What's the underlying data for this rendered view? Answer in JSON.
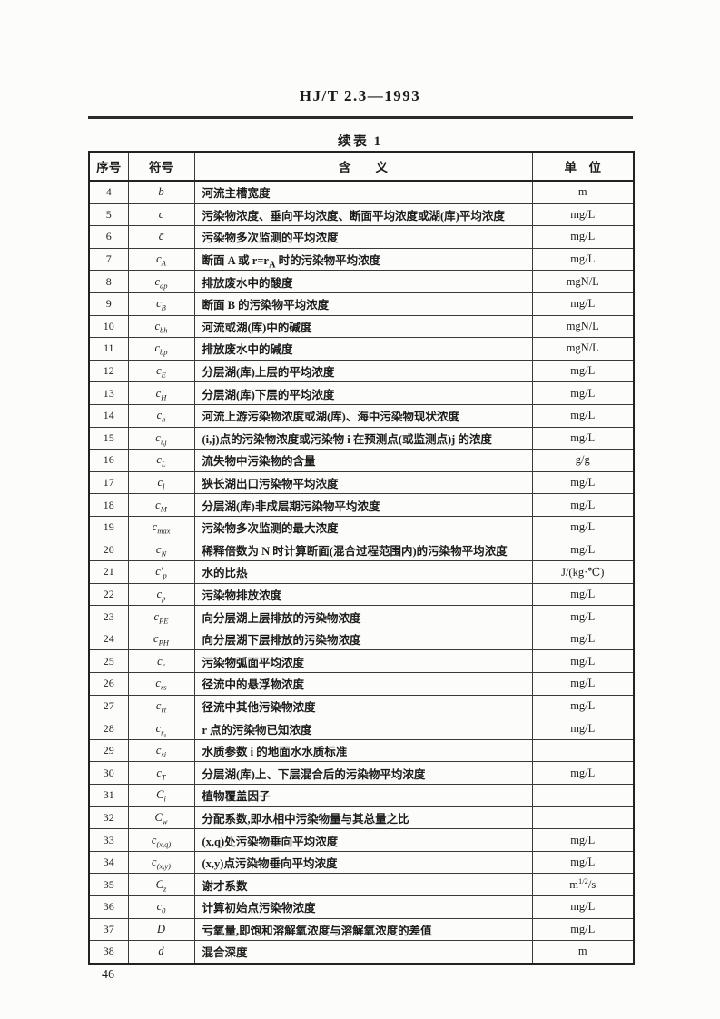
{
  "page": {
    "doc_code": "HJ/T 2.3—1993",
    "table_caption": "续表 1",
    "page_number": "46"
  },
  "table": {
    "headers": {
      "no": "序号",
      "symbol": "符号",
      "meaning": "含　　义",
      "unit": "单　位"
    },
    "rows": [
      {
        "no": "4",
        "symbol": "b",
        "meaning": "河流主槽宽度",
        "unit": "m"
      },
      {
        "no": "5",
        "symbol": "c",
        "meaning": "污染物浓度、垂向平均浓度、断面平均浓度或湖(库)平均浓度",
        "unit": "mg/L"
      },
      {
        "no": "6",
        "symbol": "c̄",
        "meaning": "污染物多次监测的平均浓度",
        "unit": "mg/L"
      },
      {
        "no": "7",
        "symbol": "c_{A}",
        "meaning": "断面 A 或 r=r_{A} 时的污染物平均浓度",
        "unit": "mg/L"
      },
      {
        "no": "8",
        "symbol": "c_{ap}",
        "meaning": "排放废水中的酸度",
        "unit": "mgN/L"
      },
      {
        "no": "9",
        "symbol": "c_{B}",
        "meaning": "断面 B 的污染物平均浓度",
        "unit": "mg/L"
      },
      {
        "no": "10",
        "symbol": "c_{bh}",
        "meaning": "河流或湖(库)中的碱度",
        "unit": "mgN/L"
      },
      {
        "no": "11",
        "symbol": "c_{bp}",
        "meaning": "排放废水中的碱度",
        "unit": "mgN/L"
      },
      {
        "no": "12",
        "symbol": "c_{E}",
        "meaning": "分层湖(库)上层的平均浓度",
        "unit": "mg/L"
      },
      {
        "no": "13",
        "symbol": "c_{H}",
        "meaning": "分层湖(库)下层的平均浓度",
        "unit": "mg/L"
      },
      {
        "no": "14",
        "symbol": "c_{h}",
        "meaning": "河流上游污染物浓度或湖(库)、海中污染物现状浓度",
        "unit": "mg/L"
      },
      {
        "no": "15",
        "symbol": "c_{i,j}",
        "meaning": "(i,j)点的污染物浓度或污染物 i 在预测点(或监测点)j 的浓度",
        "unit": "mg/L"
      },
      {
        "no": "16",
        "symbol": "c_{L}",
        "meaning": "流失物中污染物的含量",
        "unit": "g/g"
      },
      {
        "no": "17",
        "symbol": "c_{l}",
        "meaning": "狭长湖出口污染物平均浓度",
        "unit": "mg/L"
      },
      {
        "no": "18",
        "symbol": "c_{M}",
        "meaning": "分层湖(库)非成层期污染物平均浓度",
        "unit": "mg/L"
      },
      {
        "no": "19",
        "symbol": "c_{max}",
        "meaning": "污染物多次监测的最大浓度",
        "unit": "mg/L"
      },
      {
        "no": "20",
        "symbol": "c_{N}",
        "meaning": "稀释倍数为 N 时计算断面(混合过程范围内)的污染物平均浓度",
        "unit": "mg/L"
      },
      {
        "no": "21",
        "symbol": "c′_{p}",
        "meaning": "水的比热",
        "unit": "J/(kg·℃)"
      },
      {
        "no": "22",
        "symbol": "c_{p}",
        "meaning": "污染物排放浓度",
        "unit": "mg/L"
      },
      {
        "no": "23",
        "symbol": "c_{PE}",
        "meaning": "向分层湖上层排放的污染物浓度",
        "unit": "mg/L"
      },
      {
        "no": "24",
        "symbol": "c_{PH}",
        "meaning": "向分层湖下层排放的污染物浓度",
        "unit": "mg/L"
      },
      {
        "no": "25",
        "symbol": "c_{r}",
        "meaning": "污染物弧面平均浓度",
        "unit": "mg/L"
      },
      {
        "no": "26",
        "symbol": "c_{rs}",
        "meaning": "径流中的悬浮物浓度",
        "unit": "mg/L"
      },
      {
        "no": "27",
        "symbol": "c_{rt}",
        "meaning": "径流中其他污染物浓度",
        "unit": "mg/L"
      },
      {
        "no": "28",
        "symbol": "c_{r₀}",
        "meaning": "r 点的污染物已知浓度",
        "unit": "mg/L"
      },
      {
        "no": "29",
        "symbol": "c_{si}",
        "meaning": "水质参数 i 的地面水水质标准",
        "unit": ""
      },
      {
        "no": "30",
        "symbol": "c_{T}",
        "meaning": "分层湖(库)上、下层混合后的污染物平均浓度",
        "unit": "mg/L"
      },
      {
        "no": "31",
        "symbol": "C_{i}",
        "meaning": "植物覆盖因子",
        "unit": ""
      },
      {
        "no": "32",
        "symbol": "C_{w}",
        "meaning": "分配系数,即水相中污染物量与其总量之比",
        "unit": ""
      },
      {
        "no": "33",
        "symbol": "c_{(x,q)}",
        "meaning": "(x,q)处污染物垂向平均浓度",
        "unit": "mg/L"
      },
      {
        "no": "34",
        "symbol": "c_{(x,y)}",
        "meaning": "(x,y)点污染物垂向平均浓度",
        "unit": "mg/L"
      },
      {
        "no": "35",
        "symbol": "C_{z}",
        "meaning": "谢才系数",
        "unit": "m^{1/2}/s"
      },
      {
        "no": "36",
        "symbol": "c_{0}",
        "meaning": "计算初始点污染物浓度",
        "unit": "mg/L"
      },
      {
        "no": "37",
        "symbol": "D",
        "meaning": "亏氧量,即饱和溶解氧浓度与溶解氧浓度的差值",
        "unit": "mg/L"
      },
      {
        "no": "38",
        "symbol": "d",
        "meaning": "混合深度",
        "unit": "m"
      }
    ]
  }
}
